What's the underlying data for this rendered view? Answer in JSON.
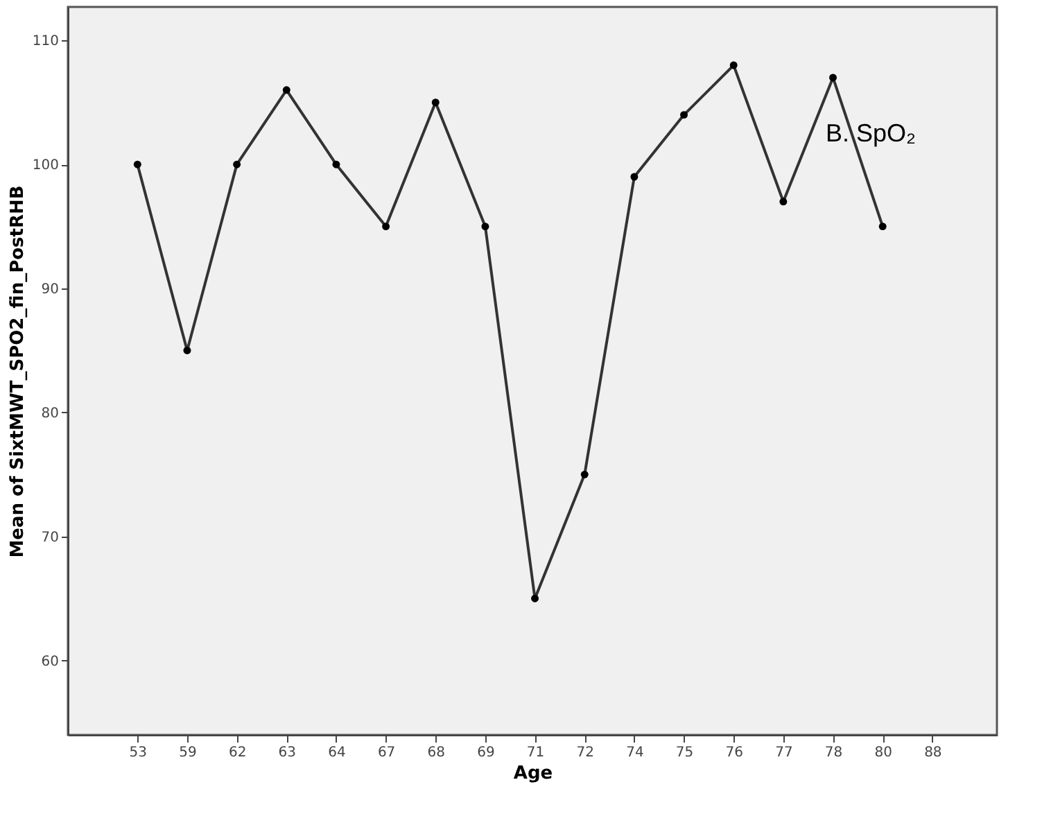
{
  "chart_data": {
    "type": "line",
    "xlabel": "Age",
    "ylabel": "Mean of SixtMWT_SPO2_fin_PostRHB",
    "categories": [
      "53",
      "59",
      "62",
      "63",
      "64",
      "67",
      "68",
      "69",
      "71",
      "72",
      "74",
      "75",
      "76",
      "77",
      "78",
      "80",
      "88"
    ],
    "values": [
      100,
      85,
      100,
      106,
      100,
      95,
      105,
      95,
      65,
      75,
      99,
      104,
      108,
      97,
      107,
      95,
      null
    ],
    "color": "#333333",
    "marker": "circle",
    "line_style": "solid",
    "grid": false,
    "ylim": [
      54,
      112.7
    ],
    "yticks": [
      60,
      70,
      80,
      90,
      100,
      110
    ],
    "annotations": [
      "B. SpO₂"
    ]
  }
}
